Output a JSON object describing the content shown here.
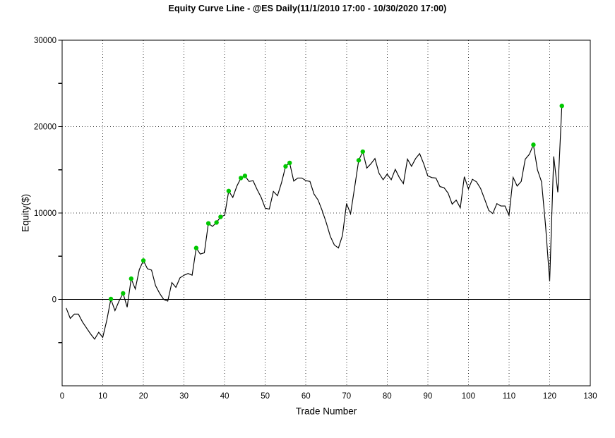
{
  "chart_data": {
    "type": "line",
    "title": "Equity Curve Line - @ES Daily(11/1/2010 17:00 - 10/30/2020 17:00)",
    "xlabel": "Trade Number",
    "ylabel": "Equity($)",
    "xlim": [
      0,
      130
    ],
    "ylim": [
      -10000,
      30000
    ],
    "x_tick_labels": [
      0,
      10,
      20,
      30,
      40,
      50,
      60,
      70,
      80,
      90,
      100,
      110,
      120,
      130
    ],
    "y_tick_labels": [
      0,
      10000,
      20000,
      30000
    ],
    "y_minor_tick_step": 5000,
    "grid": {
      "style": "dotted",
      "vertical_at": [
        10,
        20,
        30,
        40,
        50,
        60,
        70,
        80,
        90,
        100,
        110,
        120
      ],
      "horizontal_at": [
        10000,
        20000
      ]
    },
    "zero_line": true,
    "series": [
      {
        "name": "equity-curve",
        "x_first": 1,
        "values": [
          -1000,
          -2200,
          -1700,
          -1700,
          -2600,
          -3300,
          -4000,
          -4600,
          -3800,
          -4400,
          -2400,
          50,
          -1300,
          -200,
          700,
          -900,
          2400,
          1200,
          3450,
          4500,
          3550,
          3400,
          1600,
          700,
          0,
          -200,
          1950,
          1400,
          2500,
          2800,
          3000,
          2800,
          5950,
          5250,
          5400,
          8800,
          8450,
          8900,
          9550,
          9750,
          12550,
          11800,
          13100,
          14050,
          14300,
          13650,
          13740,
          12700,
          11800,
          10550,
          10450,
          12500,
          12000,
          13500,
          15400,
          15800,
          13700,
          14050,
          14050,
          13750,
          13650,
          12200,
          11500,
          10300,
          8900,
          7300,
          6300,
          5950,
          7400,
          11100,
          9900,
          13000,
          16100,
          17100,
          15200,
          15700,
          16300,
          14600,
          13850,
          14500,
          13850,
          15050,
          14100,
          13400,
          16240,
          15400,
          16300,
          16870,
          15700,
          14300,
          14100,
          14050,
          13050,
          12930,
          12300,
          11030,
          11490,
          10600,
          14200,
          12800,
          13900,
          13600,
          12850,
          11600,
          10300,
          9940,
          11085,
          10810,
          10810,
          9725,
          14125,
          13120,
          13660,
          16240,
          16790,
          17900,
          15000,
          13600,
          8500,
          2100,
          16550,
          12400,
          22400
        ]
      }
    ],
    "marker_trades": [
      12,
      15,
      17,
      20,
      33,
      36,
      38,
      39,
      41,
      44,
      45,
      55,
      56,
      73,
      74,
      116,
      123
    ],
    "colors": {
      "line": "#000000",
      "marker": "#00c800",
      "grid": "#3c3c3c",
      "frame": "#000000",
      "text": "#000000",
      "background": "#ffffff"
    },
    "legend": null
  }
}
